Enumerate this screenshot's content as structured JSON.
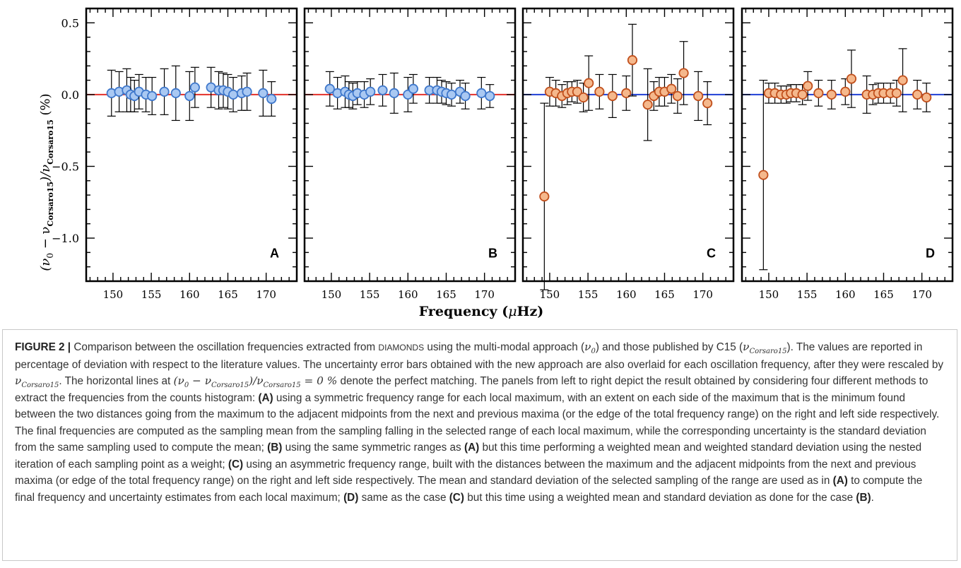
{
  "chart_data": [
    {
      "type": "scatter",
      "panel_label": "A",
      "marker_color": "#a9c8f2",
      "marker_edge": "#3f78cc",
      "ref_line_color": "#e3302a",
      "x": [
        149.8,
        150.8,
        151.8,
        152.3,
        152.8,
        153.4,
        154.3,
        155.1,
        156.7,
        158.2,
        160.0,
        160.7,
        162.8,
        163.8,
        164.4,
        165.0,
        165.7,
        166.8,
        167.5,
        169.6,
        170.7
      ],
      "y": [
        0.01,
        0.02,
        0.03,
        0.0,
        -0.01,
        0.02,
        0.0,
        -0.01,
        0.02,
        0.01,
        -0.01,
        0.05,
        0.05,
        0.03,
        0.03,
        0.02,
        0.0,
        0.01,
        0.02,
        0.01,
        -0.03
      ],
      "yerr": [
        0.16,
        0.14,
        0.15,
        0.12,
        0.11,
        0.12,
        0.12,
        0.13,
        0.16,
        0.19,
        0.17,
        0.14,
        0.14,
        0.13,
        0.12,
        0.12,
        0.12,
        0.12,
        0.13,
        0.16,
        0.12
      ]
    },
    {
      "type": "scatter",
      "panel_label": "B",
      "marker_color": "#a9c8f2",
      "marker_edge": "#3f78cc",
      "ref_line_color": "#e3302a",
      "x": [
        149.8,
        150.8,
        151.8,
        152.3,
        152.8,
        153.4,
        154.3,
        155.1,
        156.7,
        158.2,
        160.0,
        160.7,
        162.8,
        163.8,
        164.4,
        165.0,
        165.7,
        166.8,
        167.5,
        169.6,
        170.7
      ],
      "y": [
        0.04,
        0.01,
        0.02,
        0.0,
        -0.01,
        0.01,
        0.0,
        0.02,
        0.03,
        0.01,
        0.0,
        0.04,
        0.03,
        0.03,
        0.02,
        0.01,
        0.0,
        0.02,
        -0.01,
        0.01,
        -0.01
      ],
      "yerr": [
        0.12,
        0.11,
        0.11,
        0.09,
        0.09,
        0.08,
        0.09,
        0.09,
        0.11,
        0.14,
        0.12,
        0.1,
        0.09,
        0.09,
        0.08,
        0.08,
        0.08,
        0.08,
        0.09,
        0.11,
        0.08
      ]
    },
    {
      "type": "scatter",
      "panel_label": "C",
      "marker_color": "#f5b88c",
      "marker_edge": "#c1501d",
      "ref_line_color": "#1f3fd6",
      "x": [
        149.3,
        150.0,
        150.8,
        151.6,
        152.3,
        152.9,
        153.6,
        154.4,
        155.1,
        156.5,
        158.2,
        160.0,
        160.8,
        162.8,
        163.6,
        164.3,
        165.0,
        165.9,
        166.7,
        167.5,
        169.4,
        170.6
      ],
      "y": [
        -0.71,
        0.02,
        0.01,
        -0.01,
        0.01,
        0.02,
        0.02,
        -0.02,
        0.08,
        0.02,
        -0.01,
        0.01,
        0.24,
        -0.07,
        -0.01,
        0.02,
        0.02,
        0.04,
        -0.01,
        0.15,
        -0.01,
        -0.06
      ],
      "yerr": [
        0.65,
        0.1,
        0.09,
        0.08,
        0.08,
        0.07,
        0.08,
        0.1,
        0.19,
        0.12,
        0.15,
        0.12,
        0.25,
        0.25,
        0.1,
        0.1,
        0.1,
        0.1,
        0.12,
        0.22,
        0.17,
        0.15
      ]
    },
    {
      "type": "scatter",
      "panel_label": "D",
      "marker_color": "#f5b88c",
      "marker_edge": "#c1501d",
      "ref_line_color": "#1f3fd6",
      "x": [
        149.3,
        150.0,
        150.8,
        151.6,
        152.3,
        152.9,
        153.6,
        154.4,
        155.1,
        156.5,
        158.2,
        160.0,
        160.8,
        162.8,
        163.6,
        164.3,
        165.0,
        165.9,
        166.7,
        167.5,
        169.4,
        170.6
      ],
      "y": [
        -0.56,
        0.01,
        0.01,
        0.0,
        0.0,
        0.01,
        0.01,
        0.0,
        0.06,
        0.01,
        0.0,
        0.02,
        0.11,
        0.0,
        0.0,
        0.01,
        0.01,
        0.01,
        0.01,
        0.1,
        0.0,
        -0.02
      ],
      "yerr": [
        0.66,
        0.07,
        0.07,
        0.06,
        0.06,
        0.06,
        0.06,
        0.07,
        0.1,
        0.09,
        0.1,
        0.09,
        0.2,
        0.13,
        0.07,
        0.07,
        0.07,
        0.07,
        0.09,
        0.22,
        0.1,
        0.1
      ]
    }
  ],
  "axes": {
    "xlim": [
      146.5,
      174.0
    ],
    "ylim": [
      -1.3,
      0.6
    ],
    "xticks": [
      "150",
      "155",
      "160",
      "165",
      "170"
    ],
    "yticks": [
      "0.5",
      "0.0",
      "−0.5",
      "−1.0"
    ],
    "xlabel": "Frequency (μHz)",
    "ylabel": "(ν₀ − νCorsaro15)/νCorsaro15 (%)"
  },
  "caption": {
    "label": "FIGURE 2 |",
    "p1": "Comparison between the oscillation frequencies extracted from",
    "diamonds": "DIAMONDS",
    "p2": "using the multi-modal approach (",
    "p3": ") and those published by C15 (",
    "p4": "). The values are reported in percentage of deviation with respect to the literature values. The uncertainty error bars obtained with the new approach are also overlaid for each oscillation frequency, after they were rescaled by",
    "p5": ". The horizontal lines at",
    "p6": "denote the perfect matching. The panels from left to right depict the result obtained by considering four different methods to extract the frequencies from the counts histogram:",
    "a1": "(A)",
    "p7": "using a symmetric frequency range for each local maximum, with an extent on each side of the maximum that is the minimum found between the two distances going from the maximum to the adjacent midpoints from the next and previous maxima (or the edge of the total frequency range) on the right and left side respectively. The final frequencies are computed as the sampling mean from the sampling falling in the selected range of each local maximum, while the corresponding uncertainty is the standard deviation from the same sampling used to compute the mean;",
    "b1": "(B)",
    "p8": "using the same symmetric ranges as",
    "a2": "(A)",
    "p9": "but this time performing a weighted mean and weighted standard deviation using the nested iteration of each sampling point as a weight;",
    "c1": "(C)",
    "p10": "using an asymmetric frequency range, built with the distances between the maximum and the adjacent midpoints from the next and previous maxima (or edge of the total frequency range) on the right and left side respectively. The mean and standard deviation of the selected sampling of the range are used as in",
    "a3": "(A)",
    "p11": "to compute the final frequency and uncertainty estimates from each local maximum;",
    "d1": "(D)",
    "p12": "same as the case",
    "c2": "(C)",
    "p13": "but this time using a weighted mean and standard deviation as done for the case",
    "b2": "(B)",
    "p14": "."
  }
}
